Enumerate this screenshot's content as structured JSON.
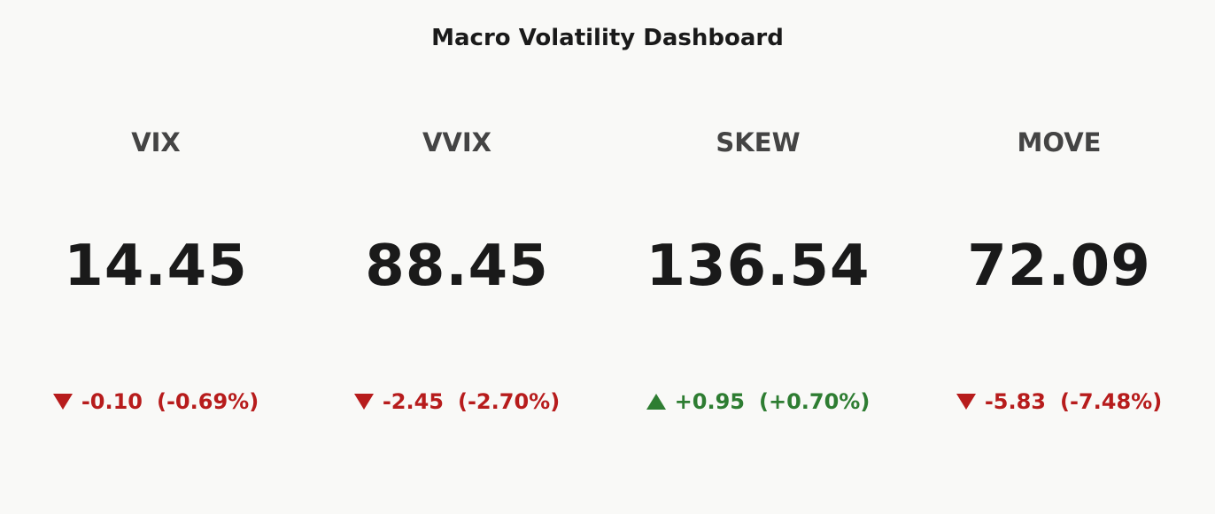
{
  "header": {
    "title": "Macro Volatility Dashboard"
  },
  "cards": [
    {
      "name": "VIX",
      "value": "14.45",
      "change": "-0.10",
      "change_pct": "(-0.69%)",
      "color": "#b71c1c"
    },
    {
      "name": "VVIX",
      "value": "88.45",
      "change": "-2.45",
      "change_pct": "(-2.70%)",
      "color": "#b71c1c"
    },
    {
      "name": "SKEW",
      "value": "136.54",
      "change": "+0.95",
      "change_pct": "(+0.70%)",
      "color": "#2e7d32"
    },
    {
      "name": "MOVE",
      "value": "72.09",
      "change": "-5.83",
      "change_pct": "(-7.48%)",
      "color": "#b71c1c"
    }
  ]
}
